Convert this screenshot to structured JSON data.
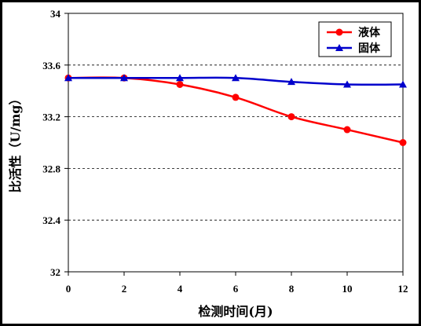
{
  "chart_data": {
    "type": "line",
    "xlabel": "检测时间(月)",
    "ylabel": "比活性（U/mg）",
    "x": [
      0,
      2,
      4,
      6,
      8,
      10,
      12
    ],
    "xticks": [
      "0",
      "2",
      "4",
      "6",
      "8",
      "10",
      "12"
    ],
    "yticks": [
      "32",
      "32.4",
      "32.8",
      "33.2",
      "33.6",
      "34"
    ],
    "xlim": [
      0,
      12
    ],
    "ylim": [
      32,
      34
    ],
    "grid": "horizontal dashed",
    "legend_position": "top-right",
    "series": [
      {
        "name": "液体",
        "values": [
          33.5,
          33.5,
          33.45,
          33.35,
          33.2,
          33.1,
          33.0
        ],
        "color": "#ff0000",
        "marker": "circle"
      },
      {
        "name": "固体",
        "values": [
          33.5,
          33.5,
          33.5,
          33.5,
          33.47,
          33.45,
          33.45
        ],
        "color": "#0000cc",
        "marker": "triangle"
      }
    ]
  }
}
